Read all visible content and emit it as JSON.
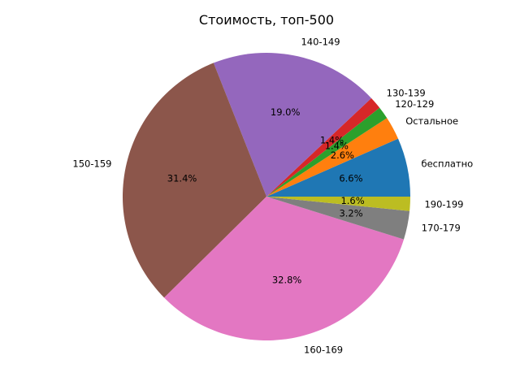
{
  "chart_data": {
    "type": "pie",
    "title": "Стоимость, топ-500",
    "start_angle_deg": 0,
    "direction": "counterclockwise",
    "slices": [
      {
        "label": "бесплатно",
        "value": 6.6,
        "pct_text": "6.6%",
        "color": "#1f77b4"
      },
      {
        "label": "Остальное",
        "value": 2.6,
        "pct_text": "2.6%",
        "color": "#ff7f0e"
      },
      {
        "label": "120-129",
        "value": 1.4,
        "pct_text": "1.4%",
        "color": "#2ca02c"
      },
      {
        "label": "130-139",
        "value": 1.4,
        "pct_text": "1.4%",
        "color": "#d62728"
      },
      {
        "label": "140-149",
        "value": 19.0,
        "pct_text": "19.0%",
        "color": "#9467bd"
      },
      {
        "label": "150-159",
        "value": 31.4,
        "pct_text": "31.4%",
        "color": "#8c564b"
      },
      {
        "label": "160-169",
        "value": 32.8,
        "pct_text": "32.8%",
        "color": "#e377c2"
      },
      {
        "label": "170-179",
        "value": 3.2,
        "pct_text": "3.2%",
        "color": "#7f7f7f"
      },
      {
        "label": "190-199",
        "value": 1.6,
        "pct_text": "1.6%",
        "color": "#bcbd22"
      }
    ]
  }
}
